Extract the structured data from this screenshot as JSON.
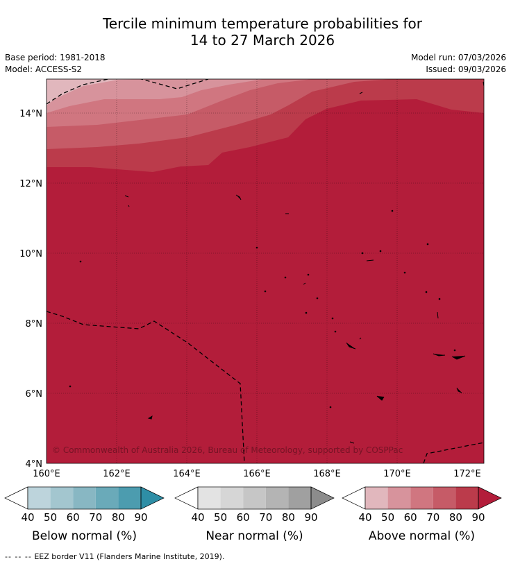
{
  "header": {
    "title_line1": "Tercile minimum temperature probabilities for",
    "title_line2": "14 to 27 March 2026",
    "base_period": "Base period: 1981-2018",
    "model": "Model: ACCESS-S2",
    "model_run": "Model run: 07/03/2026",
    "issued": "Issued: 09/03/2026"
  },
  "map": {
    "lat_labels": [
      "14°N",
      "12°N",
      "10°N",
      "8°N",
      "6°N",
      "4°N"
    ],
    "lon_labels": [
      "160°E",
      "162°E",
      "164°E",
      "166°E",
      "168°E",
      "170°E",
      "172°E"
    ],
    "copyright": "© Commonwealth of Australia 2026, Bureau of Meteorology, supported by COSPPac"
  },
  "colorbars": [
    {
      "title": "Below normal (%)",
      "ticks": [
        "40",
        "50",
        "60",
        "70",
        "80",
        "90"
      ],
      "colors": [
        "#bdd4dc",
        "#a3c6cf",
        "#88b7c3",
        "#6aaab9",
        "#4c9caf",
        "#2e8ea6"
      ]
    },
    {
      "title": "Near normal (%)",
      "ticks": [
        "40",
        "50",
        "60",
        "70",
        "80",
        "90"
      ],
      "colors": [
        "#e3e3e3",
        "#d6d6d6",
        "#c6c6c6",
        "#b4b4b4",
        "#a0a0a0",
        "#8c8c8c"
      ]
    },
    {
      "title": "Above normal (%)",
      "ticks": [
        "40",
        "50",
        "60",
        "70",
        "80",
        "90"
      ],
      "colors": [
        "#e1b7bd",
        "#d7939c",
        "#d07680",
        "#c65b67",
        "#bb3b4b",
        "#b31d3a"
      ]
    }
  ],
  "footer": {
    "legend_dash": "--  --  --",
    "legend_text": "EEZ border V11 (Flanders Marine Institute, 2019)."
  }
}
